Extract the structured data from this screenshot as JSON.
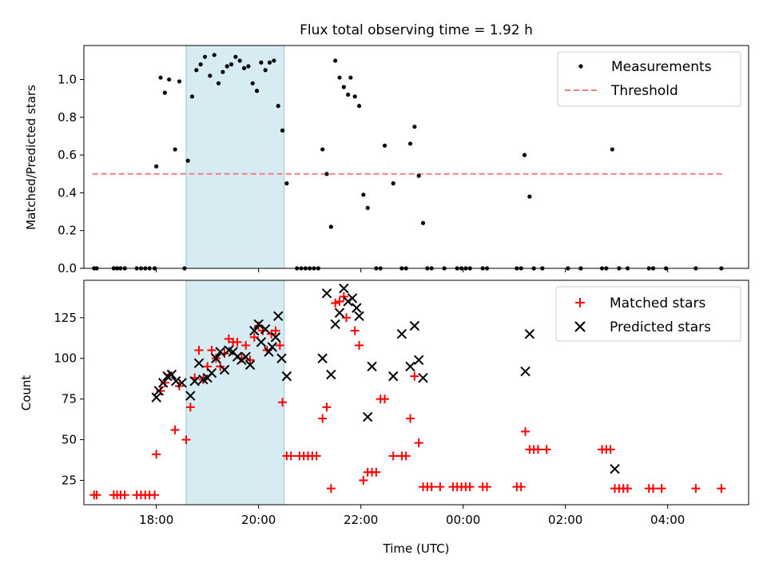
{
  "chart_data": [
    {
      "type": "scatter",
      "title": "Flux total observing time = 1.92 h",
      "xlabel": "",
      "ylabel": "Matched/Predicted stars",
      "xlim": [
        "16:35",
        "05:35"
      ],
      "ylim": [
        0,
        1.18
      ],
      "y_ticks": [
        0.0,
        0.2,
        0.4,
        0.6,
        0.8,
        1.0
      ],
      "y_tick_labels": [
        "0.0",
        "0.2",
        "0.4",
        "0.6",
        "0.8",
        "1.0"
      ],
      "shaded_span": [
        "18:35",
        "20:30"
      ],
      "legend_position": "top-right",
      "legend": [
        "Measurements",
        "Threshold"
      ],
      "threshold": {
        "name": "Threshold",
        "y": 0.5,
        "x_range": [
          "16:45",
          "05:05"
        ],
        "color": "#f08080"
      },
      "series": [
        {
          "name": "Measurements",
          "color": "#000000",
          "points": [
            [
              "16:47",
              0
            ],
            [
              "16:50",
              0
            ],
            [
              "17:10",
              0
            ],
            [
              "17:14",
              0
            ],
            [
              "17:18",
              0
            ],
            [
              "17:23",
              0
            ],
            [
              "17:37",
              0
            ],
            [
              "17:42",
              0
            ],
            [
              "17:47",
              0
            ],
            [
              "17:52",
              0
            ],
            [
              "17:58",
              0
            ],
            [
              "18:00",
              0.54
            ],
            [
              "18:05",
              1.01
            ],
            [
              "18:10",
              0.93
            ],
            [
              "18:15",
              1.0
            ],
            [
              "18:22",
              0.63
            ],
            [
              "18:27",
              0.99
            ],
            [
              "18:33",
              0
            ],
            [
              "18:37",
              0.57
            ],
            [
              "18:42",
              0.91
            ],
            [
              "18:47",
              1.05
            ],
            [
              "18:52",
              1.08
            ],
            [
              "18:57",
              1.12
            ],
            [
              "19:03",
              1.02
            ],
            [
              "19:08",
              1.13
            ],
            [
              "19:13",
              0.98
            ],
            [
              "19:18",
              1.04
            ],
            [
              "19:23",
              1.07
            ],
            [
              "19:28",
              1.08
            ],
            [
              "19:33",
              1.12
            ],
            [
              "19:38",
              1.1
            ],
            [
              "19:43",
              1.06
            ],
            [
              "19:48",
              1.07
            ],
            [
              "19:53",
              0.98
            ],
            [
              "19:58",
              0.94
            ],
            [
              "20:03",
              1.09
            ],
            [
              "20:08",
              1.05
            ],
            [
              "20:13",
              1.09
            ],
            [
              "20:18",
              1.1
            ],
            [
              "20:23",
              0.86
            ],
            [
              "20:28",
              0.73
            ],
            [
              "20:33",
              0.45
            ],
            [
              "20:45",
              0
            ],
            [
              "20:50",
              0
            ],
            [
              "20:55",
              0
            ],
            [
              "21:00",
              0
            ],
            [
              "21:05",
              0
            ],
            [
              "21:10",
              0
            ],
            [
              "21:15",
              0.63
            ],
            [
              "21:20",
              0.5
            ],
            [
              "21:25",
              0.22
            ],
            [
              "21:30",
              1.1
            ],
            [
              "21:35",
              1.01
            ],
            [
              "21:40",
              0.96
            ],
            [
              "21:45",
              0.92
            ],
            [
              "21:48",
              1.01
            ],
            [
              "21:53",
              0.91
            ],
            [
              "21:58",
              0.86
            ],
            [
              "22:03",
              0.39
            ],
            [
              "22:08",
              0.32
            ],
            [
              "22:18",
              0
            ],
            [
              "22:23",
              0
            ],
            [
              "22:28",
              0.65
            ],
            [
              "22:38",
              0.45
            ],
            [
              "22:48",
              0
            ],
            [
              "22:53",
              0
            ],
            [
              "22:58",
              0.66
            ],
            [
              "23:03",
              0.75
            ],
            [
              "23:08",
              0.49
            ],
            [
              "23:13",
              0.24
            ],
            [
              "23:18",
              0
            ],
            [
              "23:23",
              0
            ],
            [
              "23:38",
              0
            ],
            [
              "23:53",
              0
            ],
            [
              "23:58",
              0
            ],
            [
              "00:03",
              0
            ],
            [
              "00:08",
              0
            ],
            [
              "00:23",
              0
            ],
            [
              "00:28",
              0
            ],
            [
              "01:03",
              0
            ],
            [
              "01:08",
              0
            ],
            [
              "01:12",
              0.6
            ],
            [
              "01:18",
              0.38
            ],
            [
              "01:23",
              0
            ],
            [
              "01:33",
              0
            ],
            [
              "02:03",
              0
            ],
            [
              "02:18",
              0
            ],
            [
              "02:43",
              0
            ],
            [
              "02:48",
              0
            ],
            [
              "02:55",
              0.63
            ],
            [
              "03:03",
              0
            ],
            [
              "03:13",
              0
            ],
            [
              "03:38",
              0
            ],
            [
              "03:43",
              0
            ],
            [
              "03:58",
              0
            ],
            [
              "04:33",
              0
            ],
            [
              "05:03",
              0
            ]
          ]
        }
      ]
    },
    {
      "type": "scatter",
      "title": "",
      "xlabel": "Time (UTC)",
      "ylabel": "Count",
      "xlim": [
        "16:35",
        "05:35"
      ],
      "ylim": [
        10,
        148
      ],
      "y_ticks": [
        25,
        50,
        75,
        100,
        125
      ],
      "y_tick_labels": [
        "25",
        "50",
        "75",
        "100",
        "125"
      ],
      "x_ticks": [
        "18:00",
        "20:00",
        "22:00",
        "00:00",
        "02:00",
        "04:00"
      ],
      "x_tick_labels": [
        "18:00",
        "20:00",
        "22:00",
        "00:00",
        "02:00",
        "04:00"
      ],
      "shaded_span": [
        "18:35",
        "20:30"
      ],
      "legend_position": "top-right",
      "legend": [
        "Matched stars",
        "Predicted stars"
      ],
      "series": [
        {
          "name": "Matched stars",
          "color": "#ff0000",
          "marker": "plus",
          "points": [
            [
              "16:47",
              16
            ],
            [
              "16:50",
              16
            ],
            [
              "17:10",
              16
            ],
            [
              "17:14",
              16
            ],
            [
              "17:18",
              16
            ],
            [
              "17:23",
              16
            ],
            [
              "17:37",
              16
            ],
            [
              "17:42",
              16
            ],
            [
              "17:47",
              16
            ],
            [
              "17:52",
              16
            ],
            [
              "17:58",
              16
            ],
            [
              "18:00",
              41
            ],
            [
              "18:05",
              80
            ],
            [
              "18:10",
              85
            ],
            [
              "18:15",
              90
            ],
            [
              "18:22",
              56
            ],
            [
              "18:27",
              83
            ],
            [
              "18:35",
              50
            ],
            [
              "18:40",
              70
            ],
            [
              "18:45",
              88
            ],
            [
              "18:50",
              105
            ],
            [
              "18:55",
              87
            ],
            [
              "19:00",
              95
            ],
            [
              "19:05",
              105
            ],
            [
              "19:10",
              100
            ],
            [
              "19:15",
              95
            ],
            [
              "19:20",
              103
            ],
            [
              "19:25",
              112
            ],
            [
              "19:30",
              110
            ],
            [
              "19:35",
              110
            ],
            [
              "19:40",
              100
            ],
            [
              "19:45",
              108
            ],
            [
              "19:50",
              99
            ],
            [
              "19:55",
              113
            ],
            [
              "20:00",
              120
            ],
            [
              "20:05",
              117
            ],
            [
              "20:10",
              105
            ],
            [
              "20:15",
              115
            ],
            [
              "20:20",
              117
            ],
            [
              "20:25",
              108
            ],
            [
              "20:28",
              73
            ],
            [
              "20:33",
              40
            ],
            [
              "20:38",
              40
            ],
            [
              "20:48",
              40
            ],
            [
              "20:53",
              40
            ],
            [
              "20:58",
              40
            ],
            [
              "21:03",
              40
            ],
            [
              "21:08",
              40
            ],
            [
              "21:15",
              63
            ],
            [
              "21:20",
              70
            ],
            [
              "21:25",
              20
            ],
            [
              "21:30",
              134
            ],
            [
              "21:35",
              135
            ],
            [
              "21:40",
              138
            ],
            [
              "21:43",
              125
            ],
            [
              "21:53",
              117
            ],
            [
              "21:58",
              108
            ],
            [
              "22:03",
              25
            ],
            [
              "22:08",
              30
            ],
            [
              "22:13",
              30
            ],
            [
              "22:18",
              30
            ],
            [
              "22:23",
              75
            ],
            [
              "22:28",
              75
            ],
            [
              "22:38",
              40
            ],
            [
              "22:48",
              40
            ],
            [
              "22:53",
              40
            ],
            [
              "22:58",
              63
            ],
            [
              "23:03",
              89
            ],
            [
              "23:08",
              48
            ],
            [
              "23:13",
              21
            ],
            [
              "23:18",
              21
            ],
            [
              "23:23",
              21
            ],
            [
              "23:33",
              21
            ],
            [
              "23:48",
              21
            ],
            [
              "23:53",
              21
            ],
            [
              "23:58",
              21
            ],
            [
              "00:03",
              21
            ],
            [
              "00:08",
              21
            ],
            [
              "00:23",
              21
            ],
            [
              "00:28",
              21
            ],
            [
              "01:03",
              21
            ],
            [
              "01:08",
              21
            ],
            [
              "01:13",
              55
            ],
            [
              "01:18",
              44
            ],
            [
              "01:23",
              44
            ],
            [
              "01:28",
              44
            ],
            [
              "01:38",
              44
            ],
            [
              "02:43",
              44
            ],
            [
              "02:48",
              44
            ],
            [
              "02:53",
              44
            ],
            [
              "02:58",
              20
            ],
            [
              "03:03",
              20
            ],
            [
              "03:08",
              20
            ],
            [
              "03:13",
              20
            ],
            [
              "03:38",
              20
            ],
            [
              "03:43",
              20
            ],
            [
              "03:53",
              20
            ],
            [
              "04:33",
              20
            ],
            [
              "05:03",
              20
            ]
          ]
        },
        {
          "name": "Predicted stars",
          "color": "#000000",
          "marker": "x",
          "points": [
            [
              "18:00",
              76
            ],
            [
              "18:03",
              80
            ],
            [
              "18:08",
              85
            ],
            [
              "18:13",
              89
            ],
            [
              "18:18",
              90
            ],
            [
              "18:23",
              86
            ],
            [
              "18:30",
              85
            ],
            [
              "18:40",
              77
            ],
            [
              "18:45",
              86
            ],
            [
              "18:50",
              97
            ],
            [
              "18:55",
              87
            ],
            [
              "19:00",
              88
            ],
            [
              "19:05",
              91
            ],
            [
              "19:10",
              100
            ],
            [
              "19:15",
              104
            ],
            [
              "19:20",
              93
            ],
            [
              "19:25",
              105
            ],
            [
              "19:30",
              104
            ],
            [
              "19:35",
              101
            ],
            [
              "19:40",
              99
            ],
            [
              "19:45",
              101
            ],
            [
              "19:50",
              96
            ],
            [
              "19:55",
              117
            ],
            [
              "20:00",
              121
            ],
            [
              "20:03",
              110
            ],
            [
              "20:08",
              118
            ],
            [
              "20:12",
              104
            ],
            [
              "20:16",
              107
            ],
            [
              "20:20",
              113
            ],
            [
              "20:23",
              126
            ],
            [
              "20:27",
              100
            ],
            [
              "20:33",
              89
            ],
            [
              "21:15",
              100
            ],
            [
              "21:20",
              140
            ],
            [
              "21:25",
              90
            ],
            [
              "21:30",
              121
            ],
            [
              "21:35",
              128
            ],
            [
              "21:40",
              143
            ],
            [
              "21:45",
              135
            ],
            [
              "21:50",
              137
            ],
            [
              "21:55",
              131
            ],
            [
              "21:58",
              126
            ],
            [
              "22:08",
              64
            ],
            [
              "22:13",
              95
            ],
            [
              "22:38",
              89
            ],
            [
              "22:48",
              115
            ],
            [
              "22:58",
              95
            ],
            [
              "23:03",
              120
            ],
            [
              "23:08",
              99
            ],
            [
              "23:13",
              88
            ],
            [
              "01:13",
              92
            ],
            [
              "01:18",
              115
            ],
            [
              "02:58",
              32
            ]
          ]
        }
      ]
    }
  ]
}
